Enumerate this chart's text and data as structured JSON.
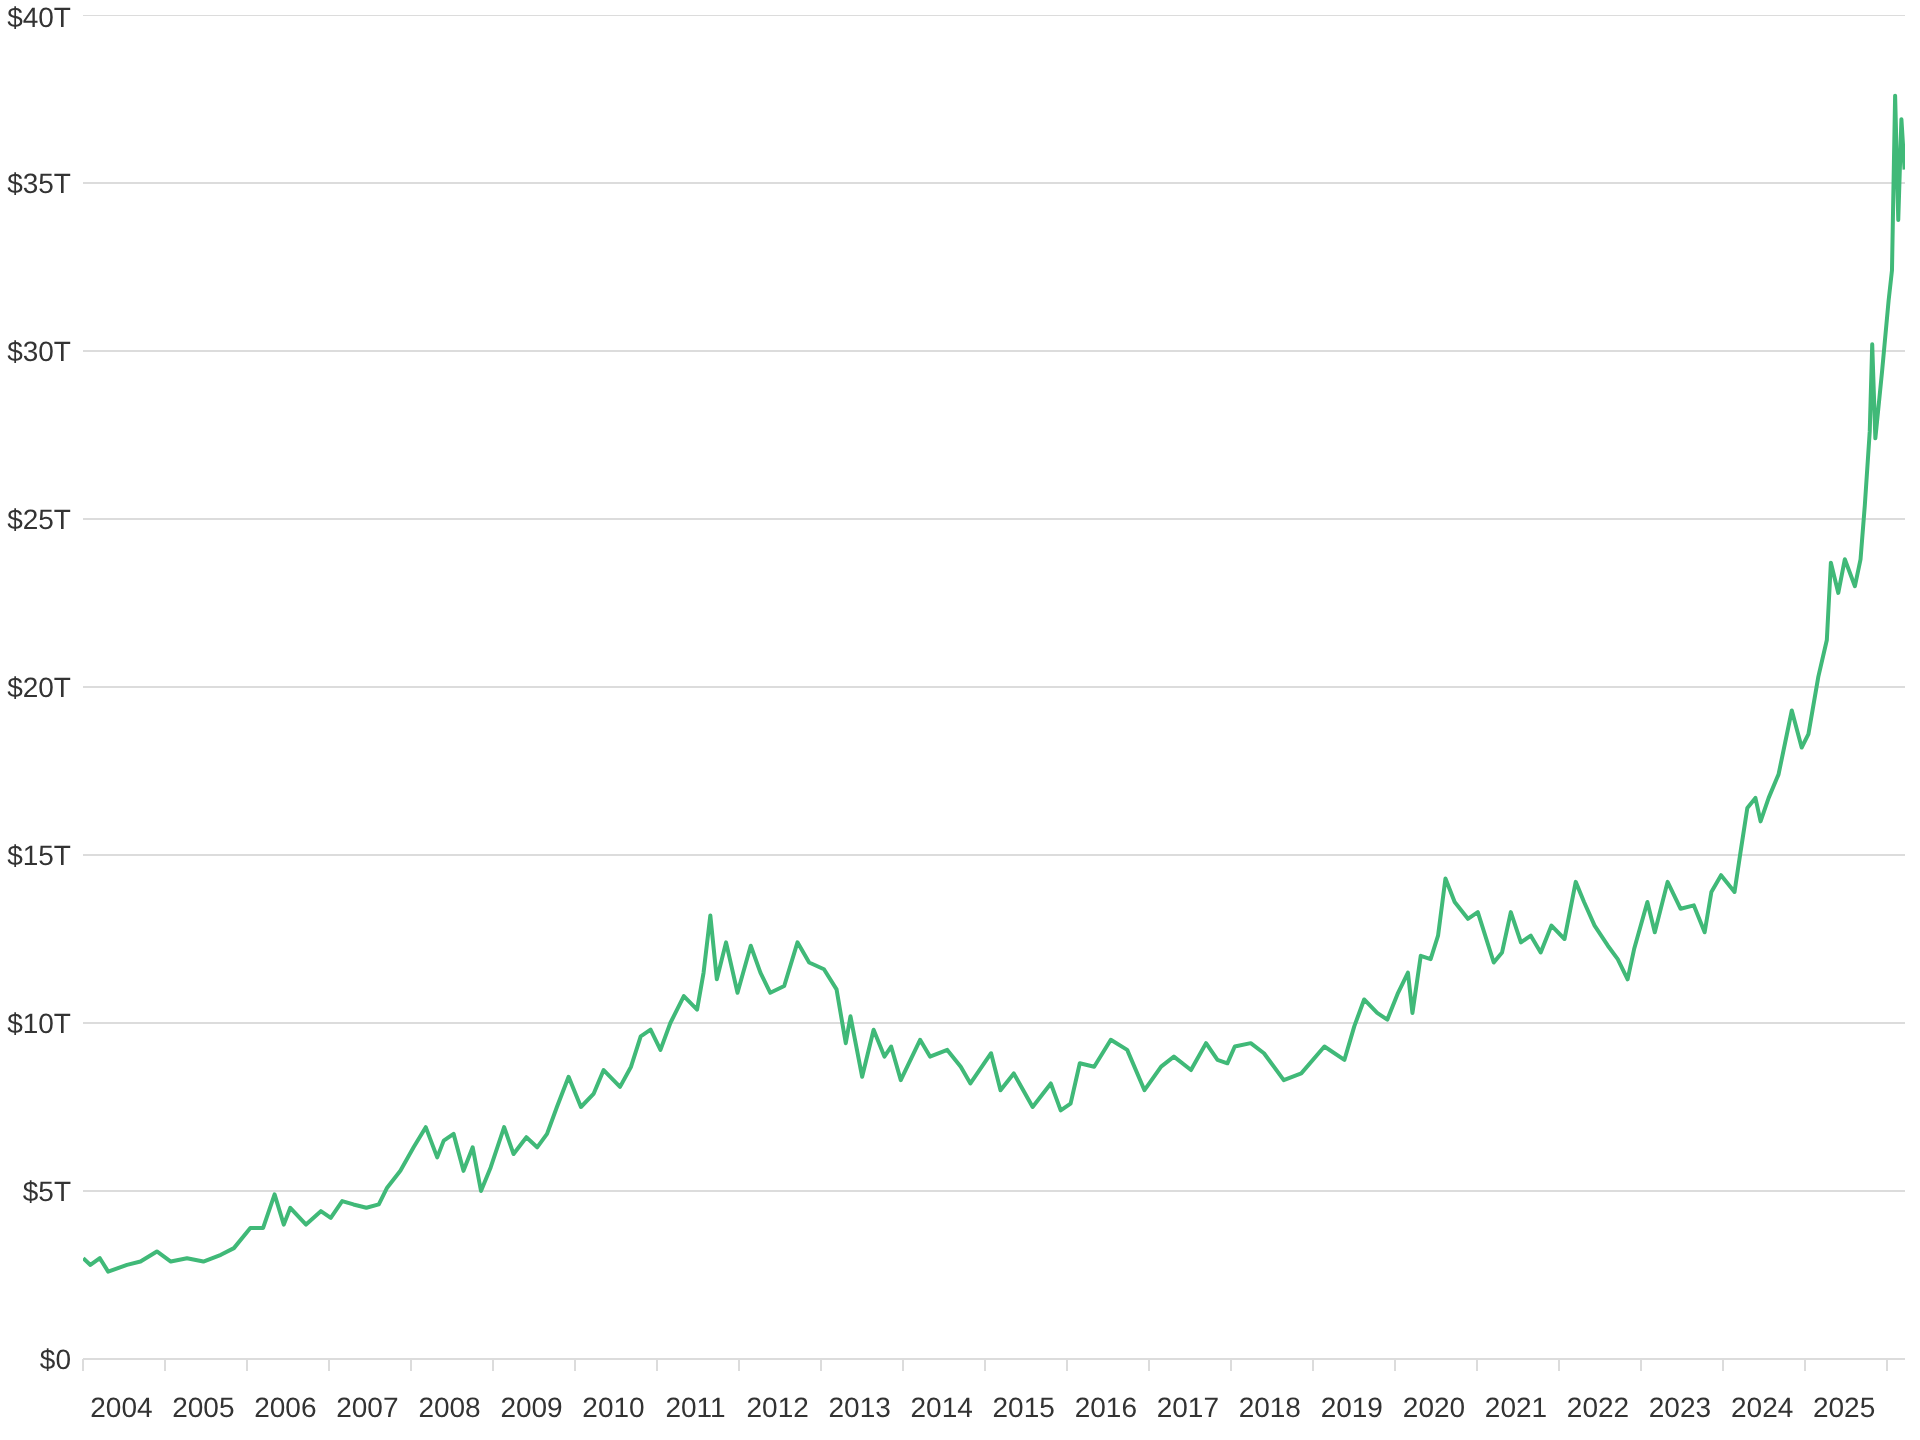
{
  "chart_data": {
    "type": "line",
    "color": "#40b978",
    "grid": "y",
    "xlim": [
      "2004-01-01",
      "2026-03-18"
    ],
    "ylim": [
      0,
      40
    ],
    "yticks": [
      {
        "value": 0,
        "label": "$0"
      },
      {
        "value": 5,
        "label": "$5T"
      },
      {
        "value": 10,
        "label": "$10T"
      },
      {
        "value": 15,
        "label": "$15T"
      },
      {
        "value": 20,
        "label": "$20T"
      },
      {
        "value": 25,
        "label": "$25T"
      },
      {
        "value": 30,
        "label": "$30T"
      },
      {
        "value": 35,
        "label": "$35T"
      },
      {
        "value": 40,
        "label": "$40T"
      }
    ],
    "xticks": [
      {
        "value": "2004-01-01",
        "label": null
      },
      {
        "value": "2005-01-01",
        "label": null
      },
      {
        "value": "2006-01-01",
        "label": null
      },
      {
        "value": "2007-01-01",
        "label": null
      },
      {
        "value": "2008-01-01",
        "label": null
      },
      {
        "value": "2009-01-01",
        "label": null
      },
      {
        "value": "2010-01-01",
        "label": null
      },
      {
        "value": "2011-01-01",
        "label": null
      },
      {
        "value": "2012-01-01",
        "label": null
      },
      {
        "value": "2013-01-01",
        "label": null
      },
      {
        "value": "2014-01-01",
        "label": null
      },
      {
        "value": "2015-01-01",
        "label": null
      },
      {
        "value": "2016-01-01",
        "label": null
      },
      {
        "value": "2017-01-01",
        "label": null
      },
      {
        "value": "2018-01-01",
        "label": null
      },
      {
        "value": "2019-01-01",
        "label": null
      },
      {
        "value": "2020-01-01",
        "label": null
      },
      {
        "value": "2021-01-01",
        "label": null
      },
      {
        "value": "2022-01-01",
        "label": null
      },
      {
        "value": "2023-01-01",
        "label": null
      },
      {
        "value": "2024-01-01",
        "label": null
      },
      {
        "value": "2025-01-01",
        "label": null
      },
      {
        "value": "2026-01-01",
        "label": null
      },
      {
        "value": "2004-06-20",
        "label": "2004"
      },
      {
        "value": "2005-06-20",
        "label": "2005"
      },
      {
        "value": "2006-06-20",
        "label": "2006"
      },
      {
        "value": "2007-06-20",
        "label": "2007"
      },
      {
        "value": "2008-06-20",
        "label": "2008"
      },
      {
        "value": "2009-06-20",
        "label": "2009"
      },
      {
        "value": "2010-06-20",
        "label": "2010"
      },
      {
        "value": "2011-06-20",
        "label": "2011"
      },
      {
        "value": "2012-06-20",
        "label": "2012"
      },
      {
        "value": "2013-06-20",
        "label": "2013"
      },
      {
        "value": "2014-06-20",
        "label": "2014"
      },
      {
        "value": "2015-06-20",
        "label": "2015"
      },
      {
        "value": "2016-06-20",
        "label": "2016"
      },
      {
        "value": "2017-06-20",
        "label": "2017"
      },
      {
        "value": "2018-06-20",
        "label": "2018"
      },
      {
        "value": "2019-06-20",
        "label": "2019"
      },
      {
        "value": "2020-06-20",
        "label": "2020"
      },
      {
        "value": "2021-06-20",
        "label": "2021"
      },
      {
        "value": "2022-06-20",
        "label": "2022"
      },
      {
        "value": "2023-06-20",
        "label": "2023"
      },
      {
        "value": "2024-06-20",
        "label": "2024"
      },
      {
        "value": "2025-06-20",
        "label": "2025"
      }
    ],
    "x": [
      "2004-01-02",
      "2004-02-03",
      "2004-03-16",
      "2004-04-22",
      "2004-07-15",
      "2004-09-13",
      "2004-11-25",
      "2005-01-26",
      "2005-04-08",
      "2005-06-20",
      "2005-09-06",
      "2005-11-03",
      "2006-01-15",
      "2006-03-13",
      "2006-05-03",
      "2006-06-13",
      "2006-07-12",
      "2006-09-20",
      "2006-11-25",
      "2007-01-08",
      "2007-02-28",
      "2007-04-19",
      "2007-06-16",
      "2007-08-10",
      "2007-09-16",
      "2007-11-14",
      "2008-01-12",
      "2008-03-06",
      "2008-04-26",
      "2008-05-25",
      "2008-07-08",
      "2008-08-21",
      "2008-10-01",
      "2008-11-07",
      "2008-12-20",
      "2009-02-18",
      "2009-04-01",
      "2009-05-28",
      "2009-07-15",
      "2009-08-28",
      "2009-10-11",
      "2009-12-02",
      "2010-01-26",
      "2010-03-24",
      "2010-05-07",
      "2010-07-19",
      "2010-09-06",
      "2010-10-19",
      "2010-12-02",
      "2011-01-15",
      "2011-02-28",
      "2011-04-29",
      "2011-06-27",
      "2011-07-26",
      "2011-08-25",
      "2011-09-23",
      "2011-11-03",
      "2011-12-24",
      "2012-02-21",
      "2012-04-04",
      "2012-05-18",
      "2012-07-19",
      "2012-09-16",
      "2012-11-07",
      "2013-01-12",
      "2013-03-09",
      "2013-04-01",
      "2013-04-19",
      "2013-05-10",
      "2013-07-01",
      "2013-08-21",
      "2013-10-08",
      "2013-11-07",
      "2013-12-20",
      "2014-03-16",
      "2014-04-29",
      "2014-07-15",
      "2014-09-13",
      "2014-10-26",
      "2015-01-26",
      "2015-03-09",
      "2015-05-07",
      "2015-07-30",
      "2015-10-19",
      "2015-12-02",
      "2016-01-15",
      "2016-02-25",
      "2016-04-29",
      "2016-07-12",
      "2016-09-23",
      "2016-12-09",
      "2017-02-21",
      "2017-04-19",
      "2017-07-04",
      "2017-09-09",
      "2017-10-30",
      "2017-12-13",
      "2018-01-15",
      "2018-03-27",
      "2018-05-25",
      "2018-08-21",
      "2018-11-07",
      "2019-02-18",
      "2019-05-18",
      "2019-07-01",
      "2019-08-14",
      "2019-10-11",
      "2019-11-25",
      "2020-01-12",
      "2020-02-25",
      "2020-03-16",
      "2020-04-22",
      "2020-06-05",
      "2020-07-08",
      "2020-08-10",
      "2020-09-20",
      "2020-11-18",
      "2021-01-01",
      "2021-03-13",
      "2021-04-19",
      "2021-05-28",
      "2021-07-12",
      "2021-08-25",
      "2021-10-08",
      "2021-11-25",
      "2022-01-22",
      "2022-03-13",
      "2022-04-19",
      "2022-06-05",
      "2022-08-03",
      "2022-09-16",
      "2022-10-30",
      "2022-11-28",
      "2023-01-26",
      "2023-02-28",
      "2023-04-26",
      "2023-06-23",
      "2023-08-21",
      "2023-10-08",
      "2023-11-07",
      "2023-12-20",
      "2024-02-18",
      "2024-03-16",
      "2024-04-15",
      "2024-05-21",
      "2024-06-13",
      "2024-07-19",
      "2024-09-01",
      "2024-10-30",
      "2024-12-13",
      "2025-01-12",
      "2025-02-25",
      "2025-04-04",
      "2025-04-22",
      "2025-05-25",
      "2025-06-23",
      "2025-08-07",
      "2025-09-01",
      "2025-09-20",
      "2025-10-12",
      "2025-10-23",
      "2025-11-06",
      "2025-12-06",
      "2026-01-04",
      "2026-01-19",
      "2026-02-02",
      "2026-02-16",
      "2026-03-02",
      "2026-03-16"
    ],
    "values": [
      3.0,
      2.8,
      3.0,
      2.6,
      2.8,
      2.9,
      3.2,
      2.9,
      3.0,
      2.9,
      3.1,
      3.3,
      3.9,
      3.9,
      4.9,
      4.0,
      4.5,
      4.0,
      4.4,
      4.2,
      4.7,
      4.6,
      4.5,
      4.6,
      5.1,
      5.6,
      6.3,
      6.9,
      6.0,
      6.5,
      6.7,
      5.6,
      6.3,
      5.0,
      5.7,
      6.9,
      6.1,
      6.6,
      6.3,
      6.7,
      7.5,
      8.4,
      7.5,
      7.9,
      8.6,
      8.1,
      8.7,
      9.6,
      9.8,
      9.2,
      10.0,
      10.8,
      10.4,
      11.5,
      13.2,
      11.3,
      12.4,
      10.9,
      12.3,
      11.5,
      10.9,
      11.1,
      12.4,
      11.8,
      11.6,
      11.0,
      10.1,
      9.4,
      10.2,
      8.4,
      9.8,
      9.0,
      9.3,
      8.3,
      9.5,
      9.0,
      9.2,
      8.7,
      8.2,
      9.1,
      8.0,
      8.5,
      7.5,
      8.2,
      7.4,
      7.6,
      8.8,
      8.7,
      9.5,
      9.2,
      8.0,
      8.7,
      9.0,
      8.6,
      9.4,
      8.9,
      8.8,
      9.3,
      9.4,
      9.1,
      8.3,
      8.5,
      9.3,
      8.9,
      9.9,
      10.7,
      10.3,
      10.1,
      10.9,
      11.5,
      10.3,
      12.0,
      11.9,
      12.6,
      14.3,
      13.6,
      13.1,
      13.3,
      11.8,
      12.1,
      13.3,
      12.4,
      12.6,
      12.1,
      12.9,
      12.5,
      14.2,
      13.6,
      12.9,
      12.3,
      11.9,
      11.3,
      12.2,
      13.6,
      12.7,
      14.2,
      13.4,
      13.5,
      12.7,
      13.9,
      14.4,
      13.9,
      15.1,
      16.4,
      16.7,
      16.0,
      16.7,
      17.4,
      19.3,
      18.2,
      18.6,
      20.3,
      21.4,
      23.7,
      22.8,
      23.8,
      23.0,
      23.8,
      25.4,
      27.6,
      30.2,
      27.4,
      29.4,
      31.5,
      32.4,
      37.6,
      33.9,
      36.9,
      35.4
    ]
  }
}
